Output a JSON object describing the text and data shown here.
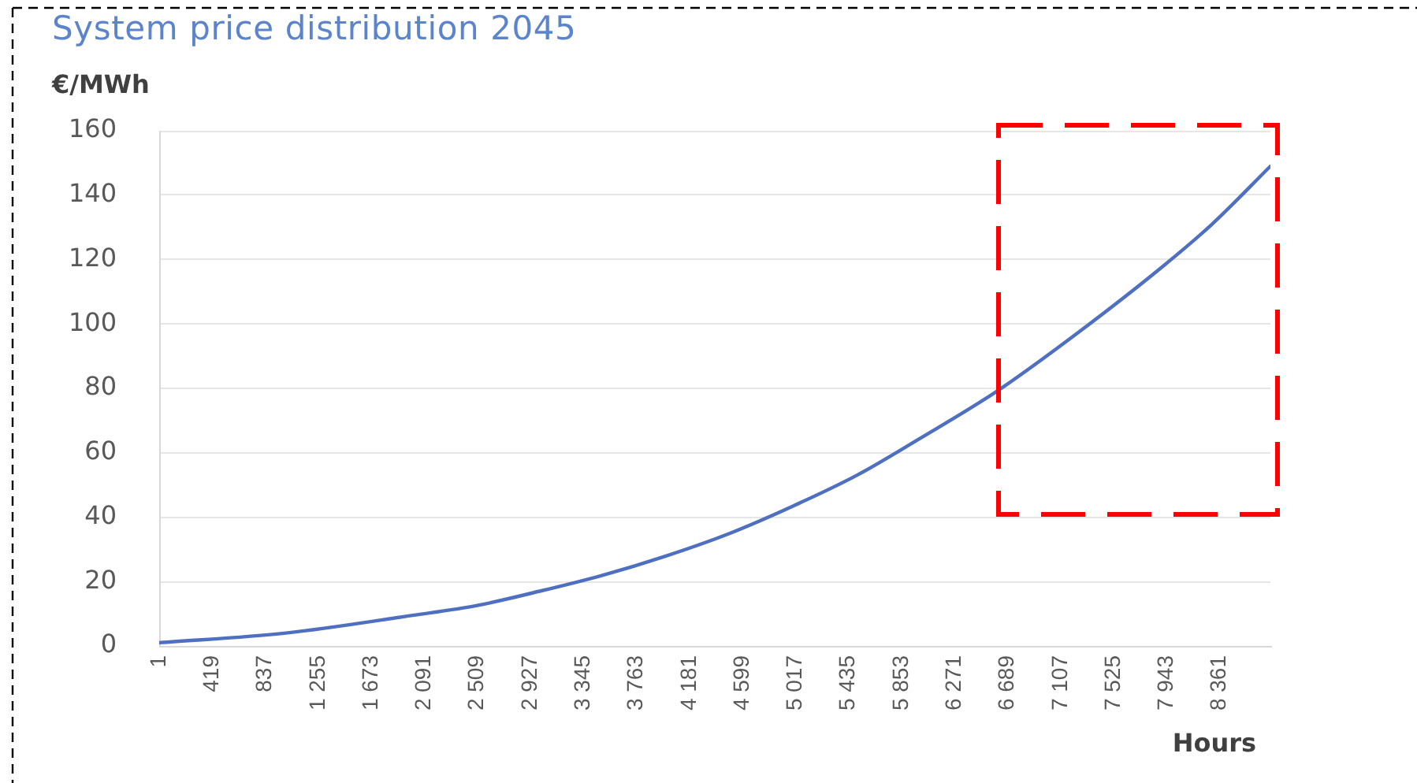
{
  "chart_data": {
    "type": "line",
    "title": "System price distribution 2045",
    "ylabel": "€/MWh",
    "xlabel": "Hours",
    "x": [
      1,
      1000,
      2000,
      2500,
      3000,
      3500,
      4000,
      4500,
      5000,
      5500,
      6000,
      6600,
      7250,
      7900,
      8300,
      8760
    ],
    "series": [
      {
        "color": "#4f6fc1",
        "values": [
          1,
          4,
          9.5,
          12.5,
          17,
          22,
          28,
          35,
          43.5,
          53,
          64.5,
          79,
          97.5,
          117.5,
          131,
          149
        ]
      }
    ],
    "xlim": [
      1,
      8760
    ],
    "xticks": [
      1,
      419,
      837,
      {
        "value": 1255,
        "label": "1 255"
      },
      {
        "value": 1673,
        "label": "1 673"
      },
      {
        "value": 2091,
        "label": "2 091"
      },
      {
        "value": 2509,
        "label": "2 509"
      },
      {
        "value": 2927,
        "label": "2 927"
      },
      {
        "value": 3345,
        "label": "3 345"
      },
      {
        "value": 3763,
        "label": "3 763"
      },
      {
        "value": 4181,
        "label": "4 181"
      },
      {
        "value": 4599,
        "label": "4 599"
      },
      {
        "value": 5017,
        "label": "5 017"
      },
      {
        "value": 5435,
        "label": "5 435"
      },
      {
        "value": 5853,
        "label": "5 853"
      },
      {
        "value": 6271,
        "label": "6 271"
      },
      {
        "value": 6689,
        "label": "6 689"
      },
      {
        "value": 7107,
        "label": "7 107"
      },
      {
        "value": 7525,
        "label": "7 525"
      },
      {
        "value": 7943,
        "label": "7 943"
      },
      {
        "value": 8361,
        "label": "8 361"
      }
    ],
    "ylim": [
      0,
      160
    ],
    "yticks": [
      0,
      20,
      40,
      60,
      80,
      100,
      120,
      140,
      160
    ],
    "grid": "y",
    "legend": false,
    "marker": "none",
    "line_style": "solid"
  }
}
